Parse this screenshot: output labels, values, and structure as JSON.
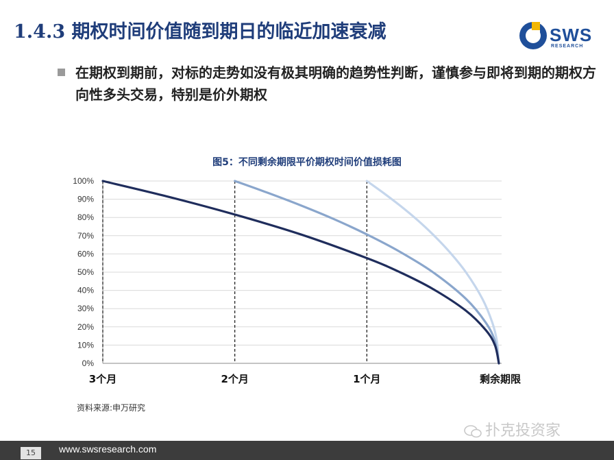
{
  "header": {
    "title": "1.4.3 期权时间价值随到期日的临近加速衰减",
    "logo_text": "SWS",
    "logo_sub": "RESEARCH"
  },
  "bullet": {
    "text": "在期权到期前，对标的走势如没有极其明确的趋势性判断，谨慎参与即将到期的期权方向性多头交易，特别是价外期权"
  },
  "chart_data": {
    "type": "line",
    "title": "图5：不同剩余期限平价期权时间价值损耗图",
    "xlabel": "",
    "ylabel": "",
    "x_ticks": [
      "3个月",
      "2个月",
      "1个月",
      "剩余期限"
    ],
    "x_range_months": [
      3,
      0
    ],
    "yticks": [
      "0%",
      "10%",
      "20%",
      "30%",
      "40%",
      "50%",
      "60%",
      "70%",
      "80%",
      "90%",
      "100%"
    ],
    "ylim": [
      0,
      100
    ],
    "grid": true,
    "legend": "none",
    "series": [
      {
        "color": "#1f2d5c",
        "x": [
          3,
          2.5,
          2,
          1.5,
          1,
          0.75,
          0.5,
          0.25,
          0.1,
          0.03,
          0
        ],
        "y": [
          100,
          91.3,
          81.6,
          70.7,
          57.7,
          50,
          40.8,
          28.9,
          18.3,
          10,
          0
        ]
      },
      {
        "color": "#8aa6cc",
        "x": [
          2,
          1.75,
          1.5,
          1.25,
          1,
          0.75,
          0.5,
          0.25,
          0.1,
          0.03,
          0
        ],
        "y": [
          100,
          93.5,
          86.6,
          79.1,
          70.7,
          61.2,
          50,
          35.4,
          22.4,
          12.2,
          0
        ]
      },
      {
        "color": "#c5d6ec",
        "x": [
          1,
          0.875,
          0.75,
          0.625,
          0.5,
          0.375,
          0.25,
          0.125,
          0.05,
          0.015,
          0
        ],
        "y": [
          100,
          93.5,
          86.6,
          79.1,
          70.7,
          61.2,
          50,
          35.4,
          22.4,
          12.2,
          0
        ]
      }
    ],
    "dashed_markers_months": [
      3,
      2,
      1
    ]
  },
  "source": "资料来源:申万研究",
  "watermark": "扑克投资家",
  "footer": {
    "page": "15",
    "url": "www.swsresearch.com"
  },
  "colors": {
    "title": "#1f3d7a",
    "footer_bg": "#3c3c3c",
    "grid": "#d9d9d9"
  }
}
